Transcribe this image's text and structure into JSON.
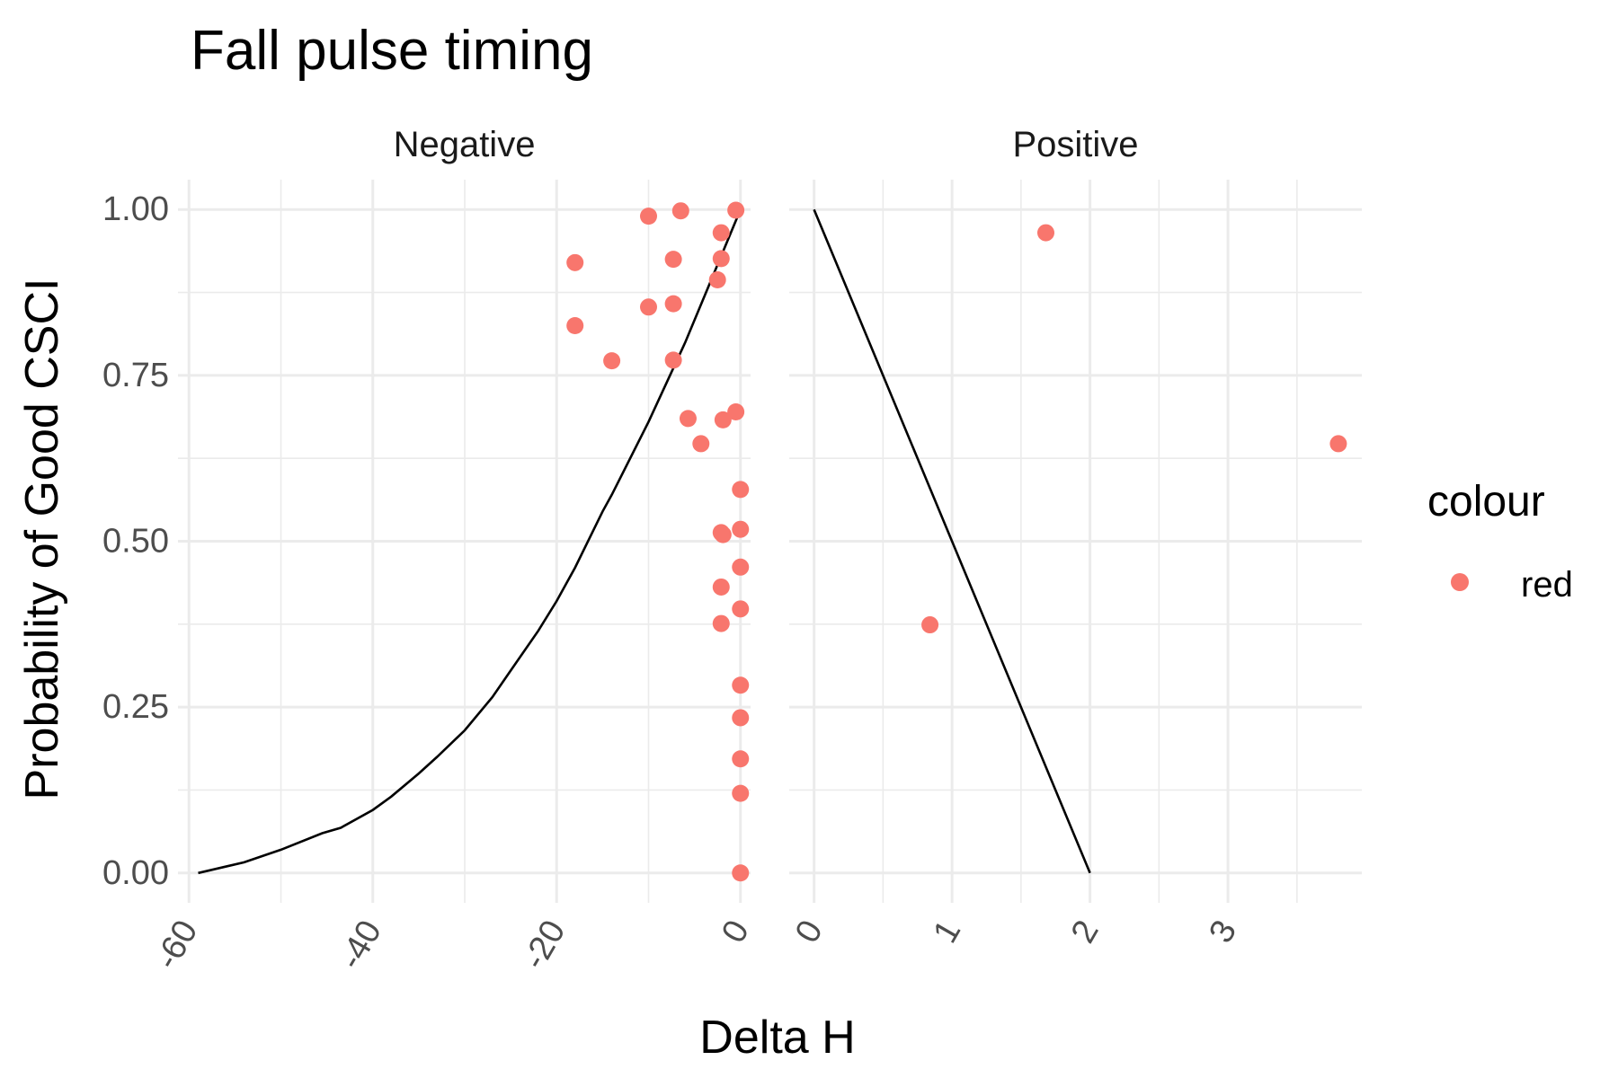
{
  "chart_data": {
    "type": "scatter",
    "title": "Fall pulse timing",
    "xlabel": "Delta H",
    "ylabel": "Probability of Good CSCI",
    "ylim": [
      -0.045,
      1.045
    ],
    "yticks": [
      0,
      0.25,
      0.5,
      0.75,
      1
    ],
    "ytick_labels": [
      "0.00",
      "0.25",
      "0.50",
      "0.75",
      "1.00"
    ],
    "grid": true,
    "legend": {
      "title": "colour",
      "position": "right",
      "entries": [
        {
          "label": "red",
          "color": "#F8766D"
        }
      ]
    },
    "point_color": "#F8766D",
    "line_color": "#000000",
    "panels": [
      {
        "label": "Negative",
        "xlim": [
          -61.2,
          1.1
        ],
        "xticks": [
          -60,
          -40,
          -20,
          0
        ],
        "xtick_labels": [
          "-60",
          "-40",
          "-20",
          "0"
        ],
        "points": [
          {
            "x": -18,
            "y": 0.92
          },
          {
            "x": -18,
            "y": 0.825
          },
          {
            "x": -14,
            "y": 0.772
          },
          {
            "x": -10,
            "y": 0.99
          },
          {
            "x": -10,
            "y": 0.853
          },
          {
            "x": -6.5,
            "y": 0.998
          },
          {
            "x": -7.3,
            "y": 0.925
          },
          {
            "x": -7.3,
            "y": 0.858
          },
          {
            "x": -7.3,
            "y": 0.773
          },
          {
            "x": -5.7,
            "y": 0.685
          },
          {
            "x": -4.3,
            "y": 0.647
          },
          {
            "x": -2.1,
            "y": 0.965
          },
          {
            "x": -2.1,
            "y": 0.926
          },
          {
            "x": -2.5,
            "y": 0.894
          },
          {
            "x": -1.9,
            "y": 0.683
          },
          {
            "x": -0.5,
            "y": 0.999
          },
          {
            "x": -0.5,
            "y": 0.695
          },
          {
            "x": 0,
            "y": 0.578
          },
          {
            "x": -2.1,
            "y": 0.513
          },
          {
            "x": -1.9,
            "y": 0.51
          },
          {
            "x": 0,
            "y": 0.518
          },
          {
            "x": 0,
            "y": 0.461
          },
          {
            "x": -2.1,
            "y": 0.431
          },
          {
            "x": 0,
            "y": 0.398
          },
          {
            "x": -2.1,
            "y": 0.376
          },
          {
            "x": 0,
            "y": 0.283
          },
          {
            "x": 0,
            "y": 0.234
          },
          {
            "x": 0,
            "y": 0.172
          },
          {
            "x": 0,
            "y": 0.12
          },
          {
            "x": 0,
            "y": 0.0
          }
        ],
        "line": [
          {
            "x": -59,
            "y": 0.0
          },
          {
            "x": -54,
            "y": 0.016
          },
          {
            "x": -50,
            "y": 0.035
          },
          {
            "x": -45.5,
            "y": 0.06
          },
          {
            "x": -43.5,
            "y": 0.068
          },
          {
            "x": -40,
            "y": 0.095
          },
          {
            "x": -38,
            "y": 0.115
          },
          {
            "x": -35,
            "y": 0.15
          },
          {
            "x": -33,
            "y": 0.175
          },
          {
            "x": -30,
            "y": 0.215
          },
          {
            "x": -27,
            "y": 0.265
          },
          {
            "x": -25,
            "y": 0.305
          },
          {
            "x": -22,
            "y": 0.365
          },
          {
            "x": -20,
            "y": 0.41
          },
          {
            "x": -18,
            "y": 0.46
          },
          {
            "x": -15,
            "y": 0.545
          },
          {
            "x": -14,
            "y": 0.57
          },
          {
            "x": -10,
            "y": 0.68
          },
          {
            "x": -6,
            "y": 0.8
          },
          {
            "x": -3,
            "y": 0.9
          },
          {
            "x": 0,
            "y": 1.0
          }
        ]
      },
      {
        "label": "Positive",
        "xlim": [
          -0.18,
          3.97
        ],
        "xticks": [
          0,
          1,
          2,
          3
        ],
        "xtick_labels": [
          "0",
          "1",
          "2",
          "3"
        ],
        "points": [
          {
            "x": 1.68,
            "y": 0.965
          },
          {
            "x": 0.84,
            "y": 0.374
          },
          {
            "x": 3.8,
            "y": 0.647
          }
        ],
        "line": [
          {
            "x": 0,
            "y": 1.0
          },
          {
            "x": 2,
            "y": 0.0
          }
        ]
      }
    ]
  }
}
